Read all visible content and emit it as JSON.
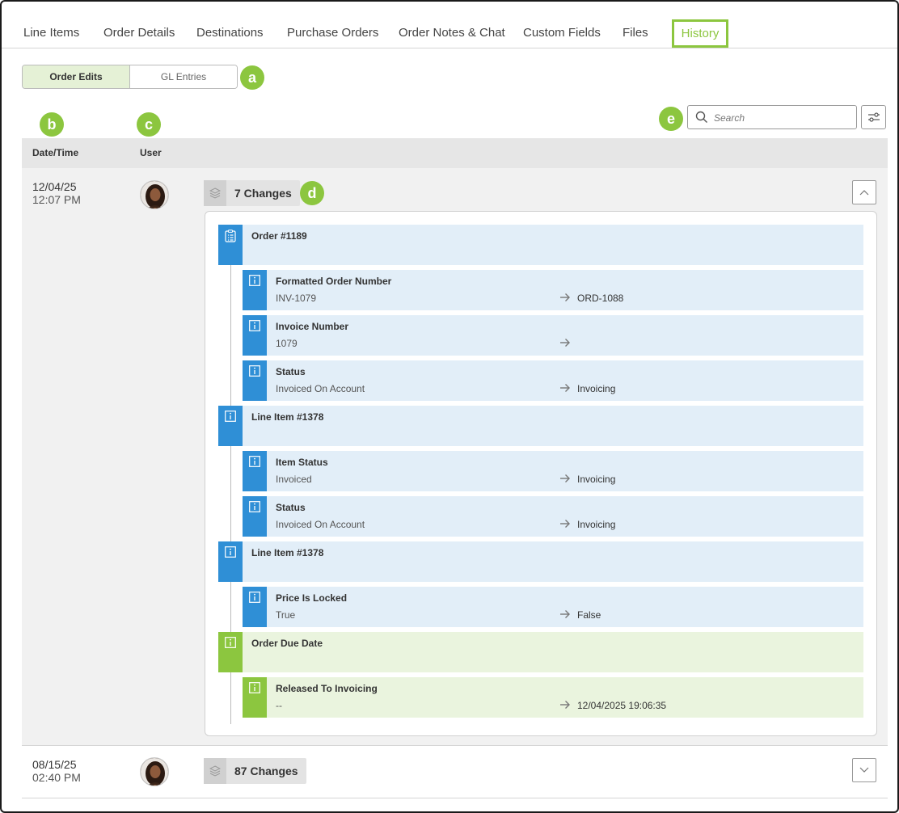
{
  "tabs": [
    {
      "label": "Line Items"
    },
    {
      "label": "Order Details"
    },
    {
      "label": "Destinations"
    },
    {
      "label": "Purchase Orders"
    },
    {
      "label": "Order Notes & Chat"
    },
    {
      "label": "Custom Fields"
    },
    {
      "label": "Files"
    },
    {
      "label": "History"
    }
  ],
  "active_tab": "History",
  "accent_color": "#8cc63f",
  "info_color": "#2f8fd6",
  "segments": {
    "order_edits": "Order Edits",
    "gl_entries": "GL Entries",
    "active": "Order Edits"
  },
  "callouts": {
    "a": "a",
    "b": "b",
    "c": "c",
    "d": "d",
    "e": "e"
  },
  "search": {
    "placeholder": "Search",
    "value": ""
  },
  "table": {
    "col_datetime": "Date/Time",
    "col_user": "User"
  },
  "rows": [
    {
      "date": "12/04/25",
      "time": "12:07 PM",
      "changes": "7 Changes",
      "expanded": true,
      "entries": [
        {
          "title": "Order #1189",
          "icon": "clipboard-list-icon",
          "color": "blue",
          "children": [
            {
              "title": "Formatted Order Number",
              "old": "INV-1079",
              "new": "ORD-1088"
            },
            {
              "title": "Invoice Number",
              "old": "1079",
              "new": ""
            },
            {
              "title": "Status",
              "old": "Invoiced On Account",
              "new": "Invoicing"
            }
          ]
        },
        {
          "title": "Line Item #1378",
          "icon": "info-icon",
          "color": "blue",
          "children": [
            {
              "title": "Item Status",
              "old": "Invoiced",
              "new": "Invoicing"
            },
            {
              "title": "Status",
              "old": "Invoiced On Account",
              "new": "Invoicing"
            }
          ]
        },
        {
          "title": "Line Item #1378",
          "icon": "info-icon",
          "color": "blue",
          "children": [
            {
              "title": "Price Is Locked",
              "old": "True",
              "new": "False"
            }
          ]
        },
        {
          "title": "Order Due Date",
          "icon": "info-icon",
          "color": "green",
          "children": [
            {
              "title": "Released To Invoicing",
              "old": "--",
              "new": "12/04/2025 19:06:35"
            }
          ]
        }
      ]
    },
    {
      "date": "08/15/25",
      "time": "02:40 PM",
      "changes": "87 Changes",
      "expanded": false
    }
  ]
}
